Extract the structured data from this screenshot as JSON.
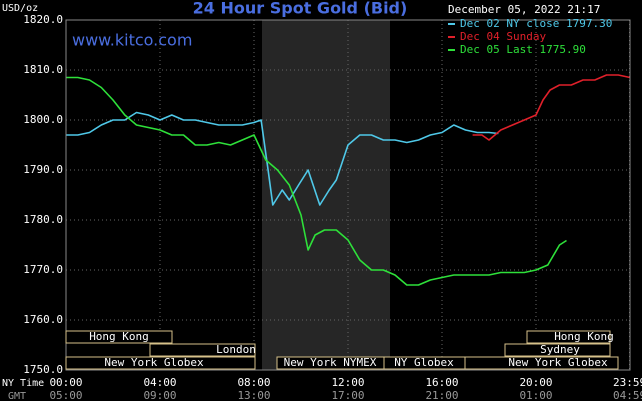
{
  "chart_data": {
    "type": "line",
    "title": "24 Hour Spot Gold (Bid)",
    "watermark": "www.kitco.com",
    "timestamp": "December 05, 2022 21:17",
    "y_label": "USD/oz",
    "x_row_labels": [
      "NY Time",
      "GMT"
    ],
    "xlim": [
      0,
      24
    ],
    "xticks": [
      {
        "value": 0,
        "label": "00:00"
      },
      {
        "value": 4,
        "label": "04:00"
      },
      {
        "value": 8,
        "label": "08:00"
      },
      {
        "value": 12,
        "label": "12:00"
      },
      {
        "value": 16,
        "label": "16:00"
      },
      {
        "value": 20,
        "label": "20:00"
      },
      {
        "value": 23.98,
        "label": "23:59"
      }
    ],
    "gmt_ticks": [
      "05:00",
      "09:00",
      "13:00",
      "17:00",
      "21:00",
      "01:00",
      "04:59"
    ],
    "ylim": [
      1750,
      1820
    ],
    "yticks": [
      {
        "value": 1750,
        "label": "1750.0"
      },
      {
        "value": 1760,
        "label": "1760.0"
      },
      {
        "value": 1770,
        "label": "1770.0"
      },
      {
        "value": 1780,
        "label": "1780.0"
      },
      {
        "value": 1790,
        "label": "1790.0"
      },
      {
        "value": 1800,
        "label": "1800.0"
      },
      {
        "value": 1810,
        "label": "1810.0"
      },
      {
        "value": 1820,
        "label": "1820.0"
      }
    ],
    "grid": true,
    "sessions": [
      "Hong Kong",
      "Hong Kong",
      "London",
      "Sydney",
      "New York Globex",
      "New York NYMEX",
      "NY Globex",
      "New York Globex"
    ],
    "series": [
      {
        "name": "Dec 02 NY close 1797.30",
        "color": "#4fc8e8",
        "x": [
          0,
          0.5,
          1,
          1.5,
          2,
          2.5,
          3,
          3.5,
          4,
          4.5,
          5,
          5.5,
          6,
          6.5,
          7,
          7.5,
          8,
          8.3,
          8.6,
          8.8,
          9.2,
          9.5,
          9.9,
          10.3,
          10.8,
          11.2,
          11.5,
          12,
          12.5,
          13,
          13.5,
          14,
          14.5,
          15,
          15.5,
          16,
          16.5,
          17,
          17.5,
          18,
          18.4
        ],
        "values": [
          1797,
          1797,
          1797.5,
          1799,
          1800,
          1800,
          1801.5,
          1801,
          1800,
          1801,
          1800,
          1800,
          1799.5,
          1799,
          1799,
          1799,
          1799.5,
          1800,
          1790,
          1783,
          1786,
          1784,
          1787,
          1790,
          1783,
          1786,
          1788,
          1795,
          1797,
          1797,
          1796,
          1796,
          1795.5,
          1796,
          1797,
          1797.5,
          1799,
          1798,
          1797.5,
          1797.5,
          1797.3
        ]
      },
      {
        "name": "Dec 04 Sunday",
        "color": "#e0202a",
        "x": [
          17.3,
          17.7,
          18,
          18.5,
          19,
          19.5,
          20,
          20.3,
          20.6,
          21,
          21.5,
          22,
          22.5,
          23,
          23.5,
          24
        ],
        "values": [
          1797,
          1797,
          1796,
          1798,
          1799,
          1800,
          1801,
          1804,
          1806,
          1807,
          1807,
          1808,
          1808,
          1809,
          1809,
          1808.5
        ]
      },
      {
        "name": "Dec 05 Last 1775.90",
        "color": "#2ee03a",
        "x": [
          0,
          0.5,
          1,
          1.5,
          2,
          2.5,
          3,
          3.5,
          4,
          4.5,
          5,
          5.5,
          6,
          6.5,
          7,
          7.5,
          8,
          8.5,
          9,
          9.5,
          10,
          10.3,
          10.6,
          11,
          11.5,
          12,
          12.5,
          13,
          13.5,
          14,
          14.5,
          15,
          15.5,
          16,
          16.5,
          17,
          17.5,
          18,
          18.5,
          19,
          19.5,
          20,
          20.5,
          21,
          21.3
        ],
        "values": [
          1808.5,
          1808.5,
          1808,
          1806.5,
          1804,
          1801,
          1799,
          1798.5,
          1798,
          1797,
          1797,
          1795,
          1795,
          1795.5,
          1795,
          1796,
          1797,
          1792,
          1790,
          1787,
          1781,
          1774,
          1777,
          1778,
          1778,
          1776,
          1772,
          1770,
          1770,
          1769,
          1767,
          1767,
          1768,
          1768.5,
          1769,
          1769,
          1769,
          1769,
          1769.5,
          1769.5,
          1769.5,
          1770,
          1771,
          1775,
          1775.9
        ]
      }
    ]
  }
}
